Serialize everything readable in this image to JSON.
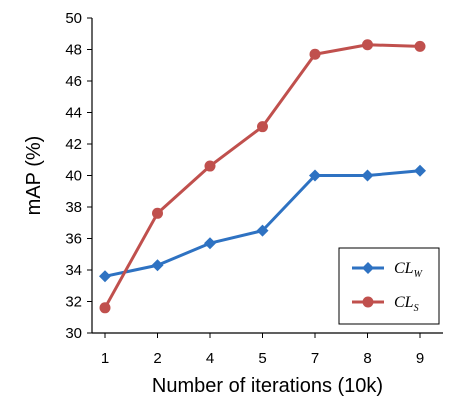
{
  "chart_data": {
    "type": "line",
    "title": "",
    "xlabel": "Number of iterations (10k)",
    "ylabel": "mAP (%)",
    "categories": [
      "1",
      "2",
      "4",
      "5",
      "7",
      "8",
      "9"
    ],
    "ylim": [
      30,
      50
    ],
    "yticks": [
      "30",
      "32",
      "34",
      "36",
      "38",
      "40",
      "42",
      "44",
      "46",
      "48",
      "50"
    ],
    "grid": false,
    "legend_position": "bottom-right",
    "series": [
      {
        "name_main": "CL",
        "name_sub": "W",
        "color": "#2e72c2",
        "marker": "diamond",
        "values": [
          33.6,
          34.3,
          35.7,
          36.5,
          40.0,
          40.0,
          40.3
        ]
      },
      {
        "name_main": "CL",
        "name_sub": "S",
        "color": "#c0504d",
        "marker": "circle",
        "values": [
          31.6,
          37.6,
          40.6,
          43.1,
          47.7,
          48.3,
          48.2
        ]
      }
    ]
  }
}
